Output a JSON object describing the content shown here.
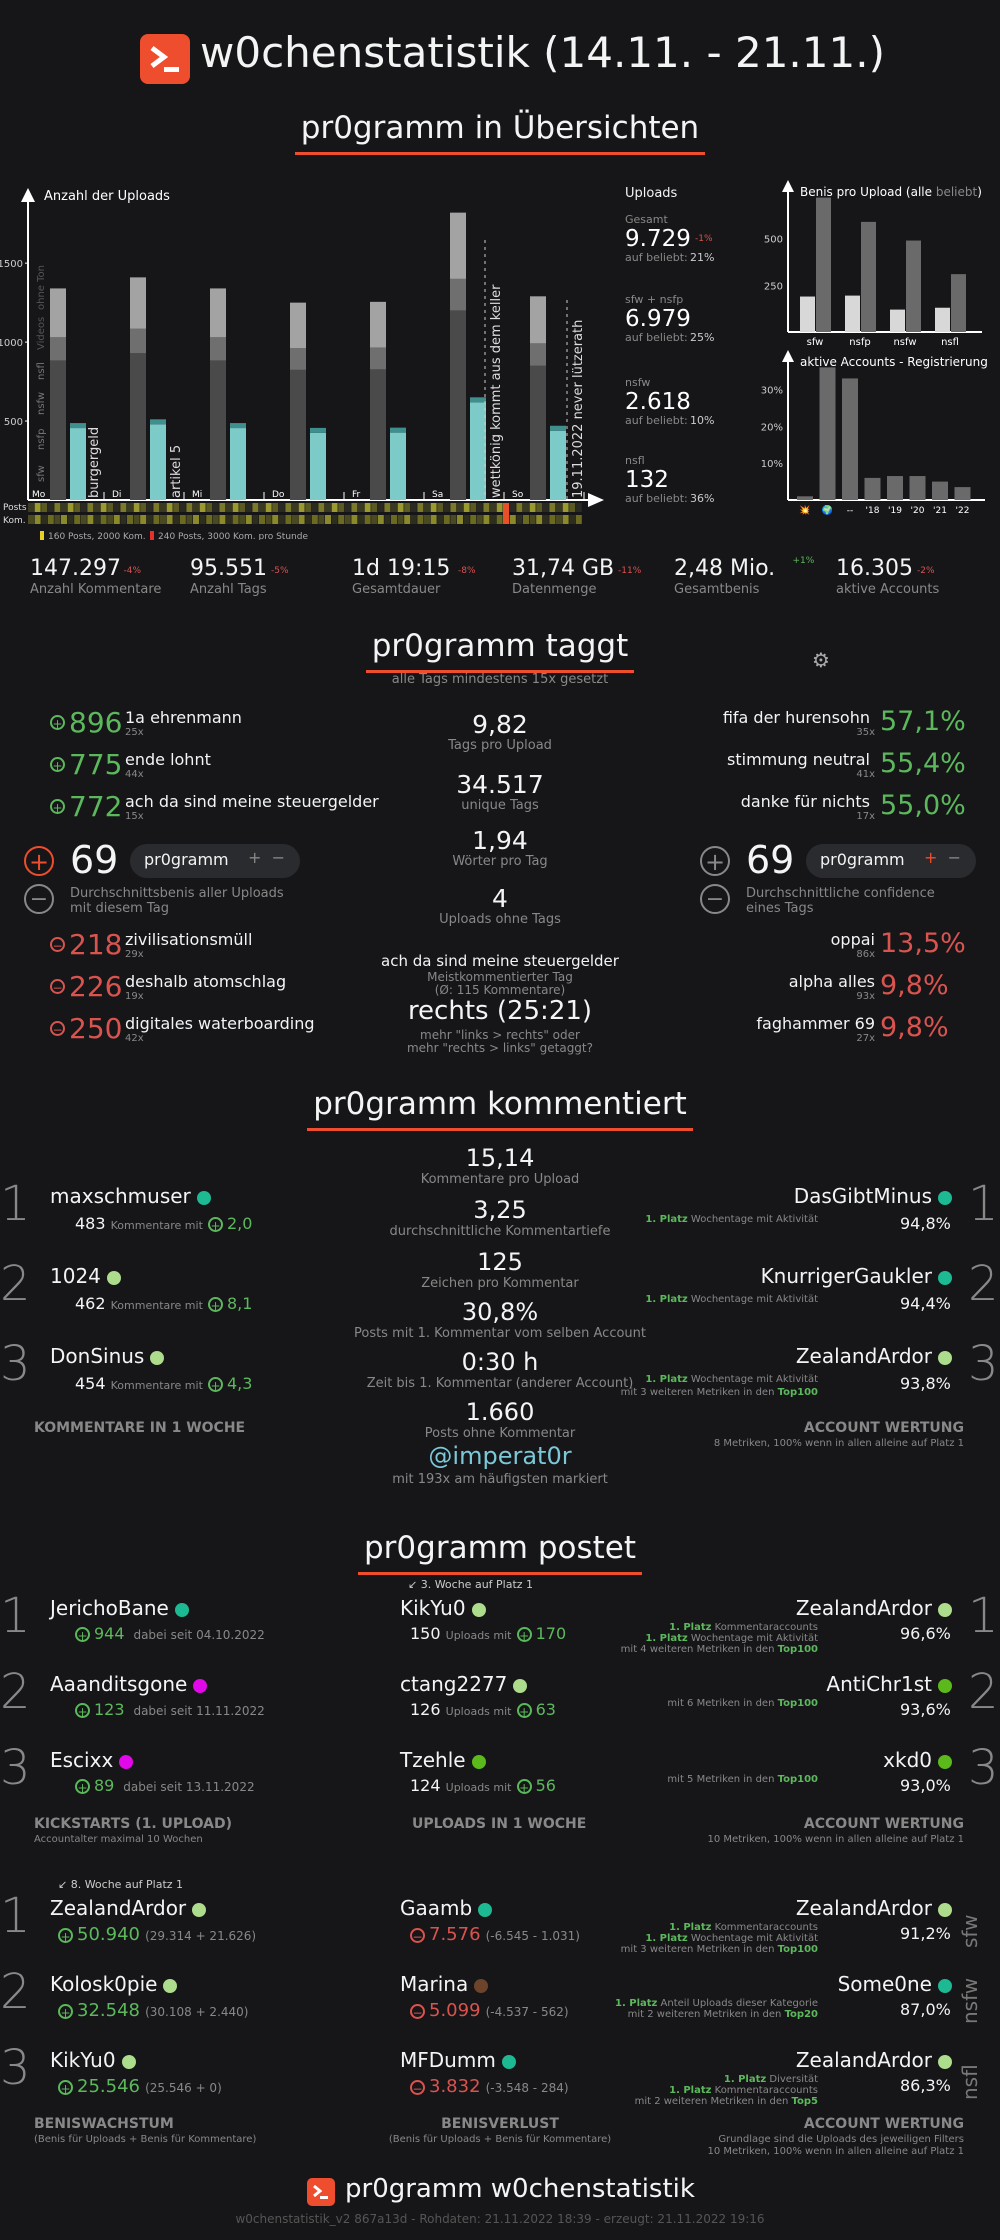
{
  "title": "w0chenstatistik (14.11. - 21.11.)",
  "sec1": "pr0gramm in Übersichten",
  "chart_data": [
    {
      "type": "bar",
      "title": "Anzahl der Uploads",
      "categories": [
        "Mo",
        "Di",
        "Mi",
        "Do",
        "Fr",
        "Sa",
        "So"
      ],
      "yticks": [
        500,
        1000,
        1500
      ],
      "ylim": [
        0,
        1900
      ],
      "series": [
        {
          "name": "sfw",
          "values": [
            1340,
            1410,
            1340,
            1250,
            1255,
            1820,
            1290
          ]
        }
      ],
      "vertical_labels": [
        "sfw",
        "nsfp",
        "nsfw",
        "nsfl",
        "Videos",
        "ohne Ton"
      ],
      "annotations": [
        "burgergeld",
        "artikel 5",
        "wettkönig kommt aus dem keller",
        "19.11.2022 never lützerath"
      ],
      "row_labels": [
        "Posts",
        "Kom."
      ],
      "legend": [
        "160 Posts, 2000 Kom.",
        "240 Posts, 3000 Kom. pro Stunde"
      ]
    },
    {
      "type": "bar",
      "title": "Benis pro Upload",
      "title_parts": [
        "(alle ",
        "beliebt",
        ")"
      ],
      "categories": [
        "sfw",
        "nsfp",
        "nsfw",
        "nsfl"
      ],
      "yticks": [
        250,
        500
      ],
      "ylim": [
        0,
        750
      ],
      "series": [
        {
          "values": [
            190,
            195,
            120,
            130
          ]
        },
        {
          "values": [
            720,
            590,
            490,
            310
          ]
        }
      ]
    },
    {
      "type": "bar",
      "title": "aktive Accounts - Registrierung",
      "categories": [
        "💥",
        "🌍",
        "--",
        "'18",
        "'19",
        "'20",
        "'21",
        "'22"
      ],
      "yticks": [
        "10%",
        "20%",
        "30%"
      ],
      "ylim": [
        0,
        38
      ],
      "values": [
        1,
        36,
        33,
        6,
        6.5,
        6.5,
        5,
        3.5
      ]
    }
  ],
  "uploads": {
    "label": "Uploads",
    "items": [
      {
        "name": "Gesamt",
        "value": "9.729",
        "delta": "-1%",
        "beliebt_label": "auf beliebt:",
        "beliebt": "21%"
      },
      {
        "name": "sfw + nsfp",
        "value": "6.979",
        "delta": "",
        "beliebt_label": "auf beliebt:",
        "beliebt": "25%"
      },
      {
        "name": "nsfw",
        "value": "2.618",
        "delta": "",
        "beliebt_label": "auf beliebt:",
        "beliebt": "10%"
      },
      {
        "name": "nsfl",
        "value": "132",
        "delta": "",
        "beliebt_label": "auf beliebt:",
        "beliebt": "36%"
      }
    ]
  },
  "totals": [
    {
      "value": "147.297",
      "delta": "-4%",
      "label": "Anzahl Kommentare",
      "dc": "r"
    },
    {
      "value": "95.551",
      "delta": "-5%",
      "label": "Anzahl Tags",
      "dc": "r"
    },
    {
      "value": "1d 19:15",
      "delta": "-8%",
      "label": "Gesamtdauer",
      "dc": "r"
    },
    {
      "value": "31,74 GB",
      "delta": "-11%",
      "label": "Datenmenge",
      "dc": "r"
    },
    {
      "value": "2,48 Mio.",
      "delta": "+1%",
      "label": "Gesamtbenis",
      "dc": "g"
    },
    {
      "value": "16.305",
      "delta": "-2%",
      "label": "aktive Accounts",
      "dc": "r"
    }
  ],
  "tags": {
    "title": "pr0gramm taggt",
    "subtitle": "alle Tags mindestens 15x gesetzt",
    "top": [
      {
        "score": "896",
        "name": "1a ehrenmann",
        "count": "25x"
      },
      {
        "score": "775",
        "name": "ende lohnt",
        "count": "44x"
      },
      {
        "score": "772",
        "name": "ach da sind meine steuergelder",
        "count": "15x"
      }
    ],
    "bottom": [
      {
        "score": "218",
        "name": "zivilisationsmüll",
        "count": "29x"
      },
      {
        "score": "226",
        "name": "deshalb atomschlag",
        "count": "19x"
      },
      {
        "score": "250",
        "name": "digitales waterboarding",
        "count": "42x"
      }
    ],
    "left_big": "69",
    "left_pill": "pr0gramm",
    "left_desc": "Durchschnittsbenis aller Uploads mit diesem Tag",
    "right_big": "69",
    "right_pill": "pr0gramm",
    "right_desc": "Durchschnittliche confidence eines Tags",
    "conf_top": [
      {
        "name": "fifa der hurensohn",
        "count": "35x",
        "pct": "57,1%"
      },
      {
        "name": "stimmung neutral",
        "count": "41x",
        "pct": "55,4%"
      },
      {
        "name": "danke für nichts",
        "count": "17x",
        "pct": "55,0%"
      }
    ],
    "conf_bottom": [
      {
        "name": "oppai",
        "count": "86x",
        "pct": "13,5%"
      },
      {
        "name": "alpha alles",
        "count": "93x",
        "pct": "9,8%"
      },
      {
        "name": "faghammer 69",
        "count": "27x",
        "pct": "9,8%"
      }
    ],
    "center": [
      {
        "v": "9,82",
        "l": "Tags pro Upload"
      },
      {
        "v": "34.517",
        "l": "unique Tags"
      },
      {
        "v": "1,94",
        "l": "Wörter pro Tag"
      },
      {
        "v": "4",
        "l": "Uploads ohne Tags"
      }
    ],
    "most_tag": "ach da sind meine steuergelder",
    "most_tag_l1": "Meistkommentierter Tag",
    "most_tag_l2": "(Ø: 115 Kommentare)",
    "links": "rechts (25:21)",
    "links_l1": "mehr \"links > rechts\" oder",
    "links_l2": "mehr \"rechts > links\" getaggt?"
  },
  "comments": {
    "title": "pr0gramm kommentiert",
    "users": [
      {
        "rank": "1",
        "name": "maxschmuser",
        "count": "483",
        "mid": "Kommentare mit",
        "score": "2,0",
        "color": "#1db992"
      },
      {
        "rank": "2",
        "name": "1024",
        "count": "462",
        "mid": "Kommentare mit",
        "score": "8,1",
        "color": "#addc8d"
      },
      {
        "rank": "3",
        "name": "DonSinus",
        "count": "454",
        "mid": "Kommentare mit",
        "score": "4,3",
        "color": "#addc8d"
      }
    ],
    "left_heading": "KOMMENTARE IN 1 WOCHE",
    "center": [
      {
        "v": "15,14",
        "l": "Kommentare pro Upload"
      },
      {
        "v": "3,25",
        "l": "durchschnittliche Kommentartiefe"
      },
      {
        "v": "125",
        "l": "Zeichen pro Kommentar"
      },
      {
        "v": "30,8%",
        "l": "Posts mit 1. Kommentar vom selben Account"
      },
      {
        "v": "0:30 h",
        "l": "Zeit bis 1. Kommentar (anderer Account)"
      },
      {
        "v": "1.660",
        "l": "Posts ohne Kommentar"
      }
    ],
    "mention": "@imperat0r",
    "mention_l": "mit 193x am häufigsten markiert",
    "right": [
      {
        "rank": "1",
        "name": "DasGibtMinus",
        "color": "#1db992",
        "l1p": "1. Platz",
        "l1": "Wochentage mit Aktivität",
        "l2": "",
        "l2b": "",
        "pct": "94,8%"
      },
      {
        "rank": "2",
        "name": "KnurrigerGaukler",
        "color": "#1db992",
        "l1p": "1. Platz",
        "l1": "Wochentage mit Aktivität",
        "l2": "",
        "l2b": "",
        "pct": "94,4%"
      },
      {
        "rank": "3",
        "name": "ZealandArdor",
        "color": "#addc8d",
        "l1p": "1. Platz",
        "l1": "Wochentage mit Aktivität",
        "l2": "mit 3 weiteren Metriken in den",
        "l2b": "Top100",
        "pct": "93,8%"
      }
    ],
    "right_heading": "ACCOUNT WERTUNG",
    "right_sub": "8 Metriken, 100% wenn in allen alleine auf Platz 1"
  },
  "posts": {
    "title": "pr0gramm postet",
    "kick": [
      {
        "rank": "1",
        "name": "JerichoBane",
        "color": "#1db992",
        "score": "944",
        "since": "dabei seit 04.10.2022"
      },
      {
        "rank": "2",
        "name": "Aaanditsgone",
        "color": "#e108e9",
        "score": "123",
        "since": "dabei seit 11.11.2022"
      },
      {
        "rank": "3",
        "name": "Escixx",
        "color": "#e108e9",
        "score": "89",
        "since": "dabei seit 13.11.2022"
      }
    ],
    "kick_heading": "KICKSTARTS (1. UPLOAD)",
    "kick_sub": "Accountalter maximal 10 Wochen",
    "note1": "3. Woche auf Platz 1",
    "up": [
      {
        "name": "KikYu0",
        "color": "#addc8d",
        "count": "150",
        "mid": "Uploads mit",
        "score": "170"
      },
      {
        "name": "ctang2277",
        "color": "#addc8d",
        "count": "126",
        "mid": "Uploads mit",
        "score": "63"
      },
      {
        "name": "Tzehle",
        "color": "#5bb91c",
        "count": "124",
        "mid": "Uploads mit",
        "score": "56"
      }
    ],
    "up_heading": "UPLOADS IN 1 WOCHE",
    "acc": [
      {
        "rank": "1",
        "name": "ZealandArdor",
        "color": "#addc8d",
        "lines": [
          [
            "1. Platz",
            "Kommentaraccounts",
            ""
          ],
          [
            "1. Platz",
            "Wochentage mit Aktivität",
            ""
          ],
          [
            "",
            "mit 4 weiteren Metriken in den",
            "Top100"
          ]
        ],
        "pct": "96,6%"
      },
      {
        "rank": "2",
        "name": "AntiChr1st",
        "color": "#5bb91c",
        "lines": [
          [
            "",
            "mit 6 Metriken in den",
            "Top100"
          ]
        ],
        "pct": "93,6%"
      },
      {
        "rank": "3",
        "name": "xkd0",
        "color": "#5bb91c",
        "lines": [
          [
            "",
            "mit 5 Metriken in den",
            "Top100"
          ]
        ],
        "pct": "93,0%"
      }
    ],
    "acc_heading": "ACCOUNT WERTUNG",
    "acc_sub": "10 Metriken, 100% wenn in allen alleine auf Platz 1"
  },
  "benis": {
    "note": "8. Woche auf Platz 1",
    "grow": [
      {
        "rank": "1",
        "name": "ZealandArdor",
        "color": "#addc8d",
        "score": "50.940",
        "detail": "(29.314 + 21.626)"
      },
      {
        "rank": "2",
        "name": "Kolosk0pie",
        "color": "#addc8d",
        "score": "32.548",
        "detail": "(30.108 + 2.440)"
      },
      {
        "rank": "3",
        "name": "KikYu0",
        "color": "#addc8d",
        "score": "25.546",
        "detail": "(25.546 + 0)"
      }
    ],
    "grow_heading": "BENISWACHSTUM",
    "grow_sub": "(Benis für Uploads + Benis für Kommentare)",
    "loss": [
      {
        "name": "Gaamb",
        "color": "#1db992",
        "score": "7.576",
        "detail": "(-6.545 - 1.031)"
      },
      {
        "name": "Marina",
        "color": "#6c432b",
        "score": "5.099",
        "detail": "(-4.537 - 562)"
      },
      {
        "name": "MFDumm",
        "color": "#1db992",
        "score": "3.832",
        "detail": "(-3.548 - 284)"
      }
    ],
    "loss_heading": "BENISVERLUST",
    "loss_sub": "(Benis für Uploads + Benis für Kommentare)",
    "acc": [
      {
        "name": "ZealandArdor",
        "color": "#addc8d",
        "lines": [
          [
            "1. Platz",
            "Kommentaraccounts",
            ""
          ],
          [
            "1. Platz",
            "Wochentage mit Aktivität",
            ""
          ],
          [
            "",
            "mit 3 weiteren Metriken in den",
            "Top100"
          ]
        ],
        "pct": "91,2%",
        "tag": "sfw"
      },
      {
        "name": "Some0ne",
        "color": "#1db992",
        "lines": [
          [
            "1. Platz",
            "Anteil Uploads dieser Kategorie",
            ""
          ],
          [
            "",
            "mit 2 weiteren Metriken in den",
            "Top20"
          ]
        ],
        "pct": "87,0%",
        "tag": "nsfw"
      },
      {
        "name": "ZealandArdor",
        "color": "#addc8d",
        "lines": [
          [
            "1. Platz",
            "Diversität",
            ""
          ],
          [
            "1. Platz",
            "Kommentaraccounts",
            ""
          ],
          [
            "",
            "mit 2 weiteren Metriken in den",
            "Top5"
          ]
        ],
        "pct": "86,3%",
        "tag": "nsfl"
      }
    ],
    "acc_heading": "ACCOUNT WERTUNG",
    "acc_sub1": "Grundlage sind die Uploads des jeweiligen Filters",
    "acc_sub2": "10 Metriken, 100% wenn in allen alleine auf Platz 1"
  },
  "footer": {
    "title": "pr0gramm w0chenstatistik",
    "meta": "w0chenstatistik_v2 867a13d - Rohdaten: 21.11.2022 18:39 - erzeugt: 21.11.2022 19:16"
  }
}
